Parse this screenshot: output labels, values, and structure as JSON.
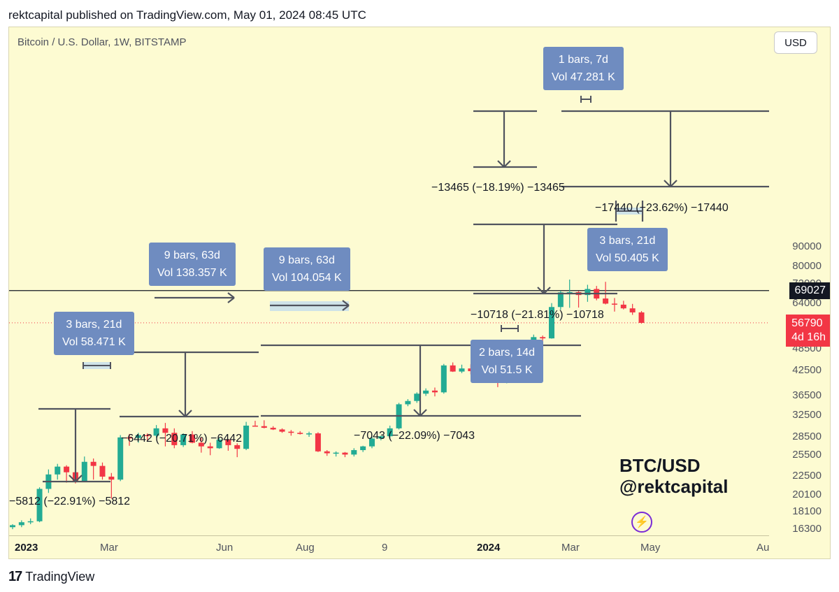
{
  "header": {
    "published": "rektcapital published on TradingView.com, May 01, 2024 08:45 UTC"
  },
  "footer": {
    "brand": "TradingView",
    "logo_glyph": "17"
  },
  "toolbar": {
    "currency_label": "USD"
  },
  "chart_data": {
    "type": "candlestick",
    "title": "Bitcoin / U.S. Dollar, 1W, BITSTAMP",
    "watermark": [
      "BTC/USD",
      "@rektcapital"
    ],
    "y_ticks": [
      "90000",
      "80000",
      "72000",
      "64000",
      "56790",
      "48500",
      "42500",
      "36500",
      "32500",
      "28500",
      "25500",
      "22500",
      "20100",
      "18100",
      "16300"
    ],
    "x_ticks": [
      "2023",
      "Mar",
      "Jun",
      "Aug",
      "9",
      "2024",
      "Mar",
      "May",
      "Au"
    ],
    "horizontal_line": {
      "value": 69027,
      "label": "69027"
    },
    "last_price": {
      "value": 56790,
      "label": "56790",
      "countdown": "4d 16h",
      "color": "#f23645"
    },
    "colors": {
      "up": "#22ab94",
      "down": "#f23645"
    },
    "candles": [
      [
        16500,
        16800,
        16300,
        16700
      ],
      [
        16700,
        17200,
        16500,
        17000
      ],
      [
        17000,
        17400,
        16800,
        17100
      ],
      [
        17100,
        21000,
        17000,
        20800
      ],
      [
        20800,
        23400,
        20300,
        22700
      ],
      [
        22700,
        24200,
        22000,
        23800
      ],
      [
        23800,
        24000,
        21600,
        23000
      ],
      [
        23000,
        23400,
        21500,
        21800
      ],
      [
        21800,
        25300,
        21700,
        24500
      ],
      [
        24500,
        25000,
        22000,
        23900
      ],
      [
        23900,
        24400,
        22000,
        22400
      ],
      [
        22400,
        22900,
        19600,
        22000
      ],
      [
        22000,
        28800,
        21800,
        28400
      ],
      [
        28400,
        29000,
        27000,
        28300
      ],
      [
        28300,
        29200,
        27500,
        28800
      ],
      [
        28800,
        29100,
        27900,
        28700
      ],
      [
        28700,
        30600,
        28400,
        30000
      ],
      [
        30000,
        31000,
        26900,
        29200
      ],
      [
        29200,
        30000,
        26600,
        27100
      ],
      [
        27100,
        29100,
        26800,
        28900
      ],
      [
        28900,
        29500,
        27400,
        27500
      ],
      [
        27500,
        28400,
        25900,
        26900
      ],
      [
        26900,
        27500,
        25500,
        26600
      ],
      [
        26600,
        28300,
        26500,
        28000
      ],
      [
        28000,
        28100,
        26200,
        27100
      ],
      [
        27100,
        27400,
        25200,
        26500
      ],
      [
        26500,
        31200,
        26300,
        30500
      ],
      [
        30500,
        31400,
        30300,
        30400
      ],
      [
        30400,
        31500,
        30000,
        30100
      ],
      [
        30100,
        30400,
        29700,
        29800
      ],
      [
        29800,
        30000,
        29200,
        29400
      ],
      [
        29400,
        29700,
        28700,
        29200
      ],
      [
        29200,
        29500,
        28900,
        29000
      ],
      [
        29000,
        29400,
        28500,
        29100
      ],
      [
        29100,
        29300,
        26000,
        26100
      ],
      [
        26100,
        26300,
        25400,
        25800
      ],
      [
        25800,
        26100,
        25300,
        25900
      ],
      [
        25900,
        26000,
        25200,
        25600
      ],
      [
        25600,
        26600,
        25300,
        26300
      ],
      [
        26300,
        27000,
        26000,
        26900
      ],
      [
        26900,
        28500,
        26600,
        28200
      ],
      [
        28200,
        28700,
        27900,
        28600
      ],
      [
        28600,
        30500,
        28300,
        30000
      ],
      [
        30000,
        35000,
        29800,
        34700
      ],
      [
        34700,
        35800,
        34300,
        35400
      ],
      [
        35400,
        37300,
        35000,
        37000
      ],
      [
        37000,
        38200,
        36500,
        37700
      ],
      [
        37700,
        38400,
        36400,
        37300
      ],
      [
        37300,
        44300,
        37000,
        43900
      ],
      [
        43900,
        44700,
        42200,
        42300
      ],
      [
        42300,
        44100,
        41900,
        43100
      ],
      [
        43100,
        44200,
        41600,
        42400
      ],
      [
        42400,
        45800,
        40300,
        42900
      ],
      [
        42900,
        43200,
        39900,
        41300
      ],
      [
        41300,
        41800,
        38500,
        39800
      ],
      [
        39800,
        42500,
        39400,
        42100
      ],
      [
        42100,
        43500,
        41800,
        42500
      ],
      [
        42500,
        48700,
        42300,
        48300
      ],
      [
        48300,
        52900,
        48100,
        52100
      ],
      [
        52100,
        52600,
        50600,
        51700
      ],
      [
        51700,
        64000,
        51600,
        62500
      ],
      [
        62500,
        69000,
        61500,
        68300
      ],
      [
        68300,
        73800,
        62200,
        68400
      ],
      [
        68400,
        68900,
        62300,
        67200
      ],
      [
        67200,
        71500,
        64500,
        69700
      ],
      [
        69700,
        71000,
        65100,
        65800
      ],
      [
        65800,
        72800,
        63500,
        63800
      ],
      [
        63800,
        66000,
        60800,
        63400
      ],
      [
        63400,
        64900,
        61600,
        62000
      ],
      [
        62000,
        63700,
        59600,
        60500
      ],
      [
        60500,
        61000,
        56500,
        56790
      ]
    ],
    "annotations": {
      "range_boxes": [
        {
          "bars": "3 bars, 21d",
          "vol": "Vol 58.471 K"
        },
        {
          "bars": "9 bars, 63d",
          "vol": "Vol 138.357 K"
        },
        {
          "bars": "9 bars, 63d",
          "vol": "Vol 104.054 K"
        },
        {
          "bars": "2 bars, 14d",
          "vol": "Vol 51.5 K"
        },
        {
          "bars": "1 bars, 7d",
          "vol": "Vol 47.281 K"
        },
        {
          "bars": "3 bars, 21d",
          "vol": "Vol 50.405 K"
        }
      ],
      "drawdowns": [
        "−5812 (−22.91%) −5812",
        "−6442 (−20.71%) −6442",
        "−7043 (−22.09%) −7043",
        "−10718 (−21.81%) −10718",
        "−13465 (−18.19%) −13465",
        "−17440 (−23.62%) −17440"
      ]
    }
  }
}
